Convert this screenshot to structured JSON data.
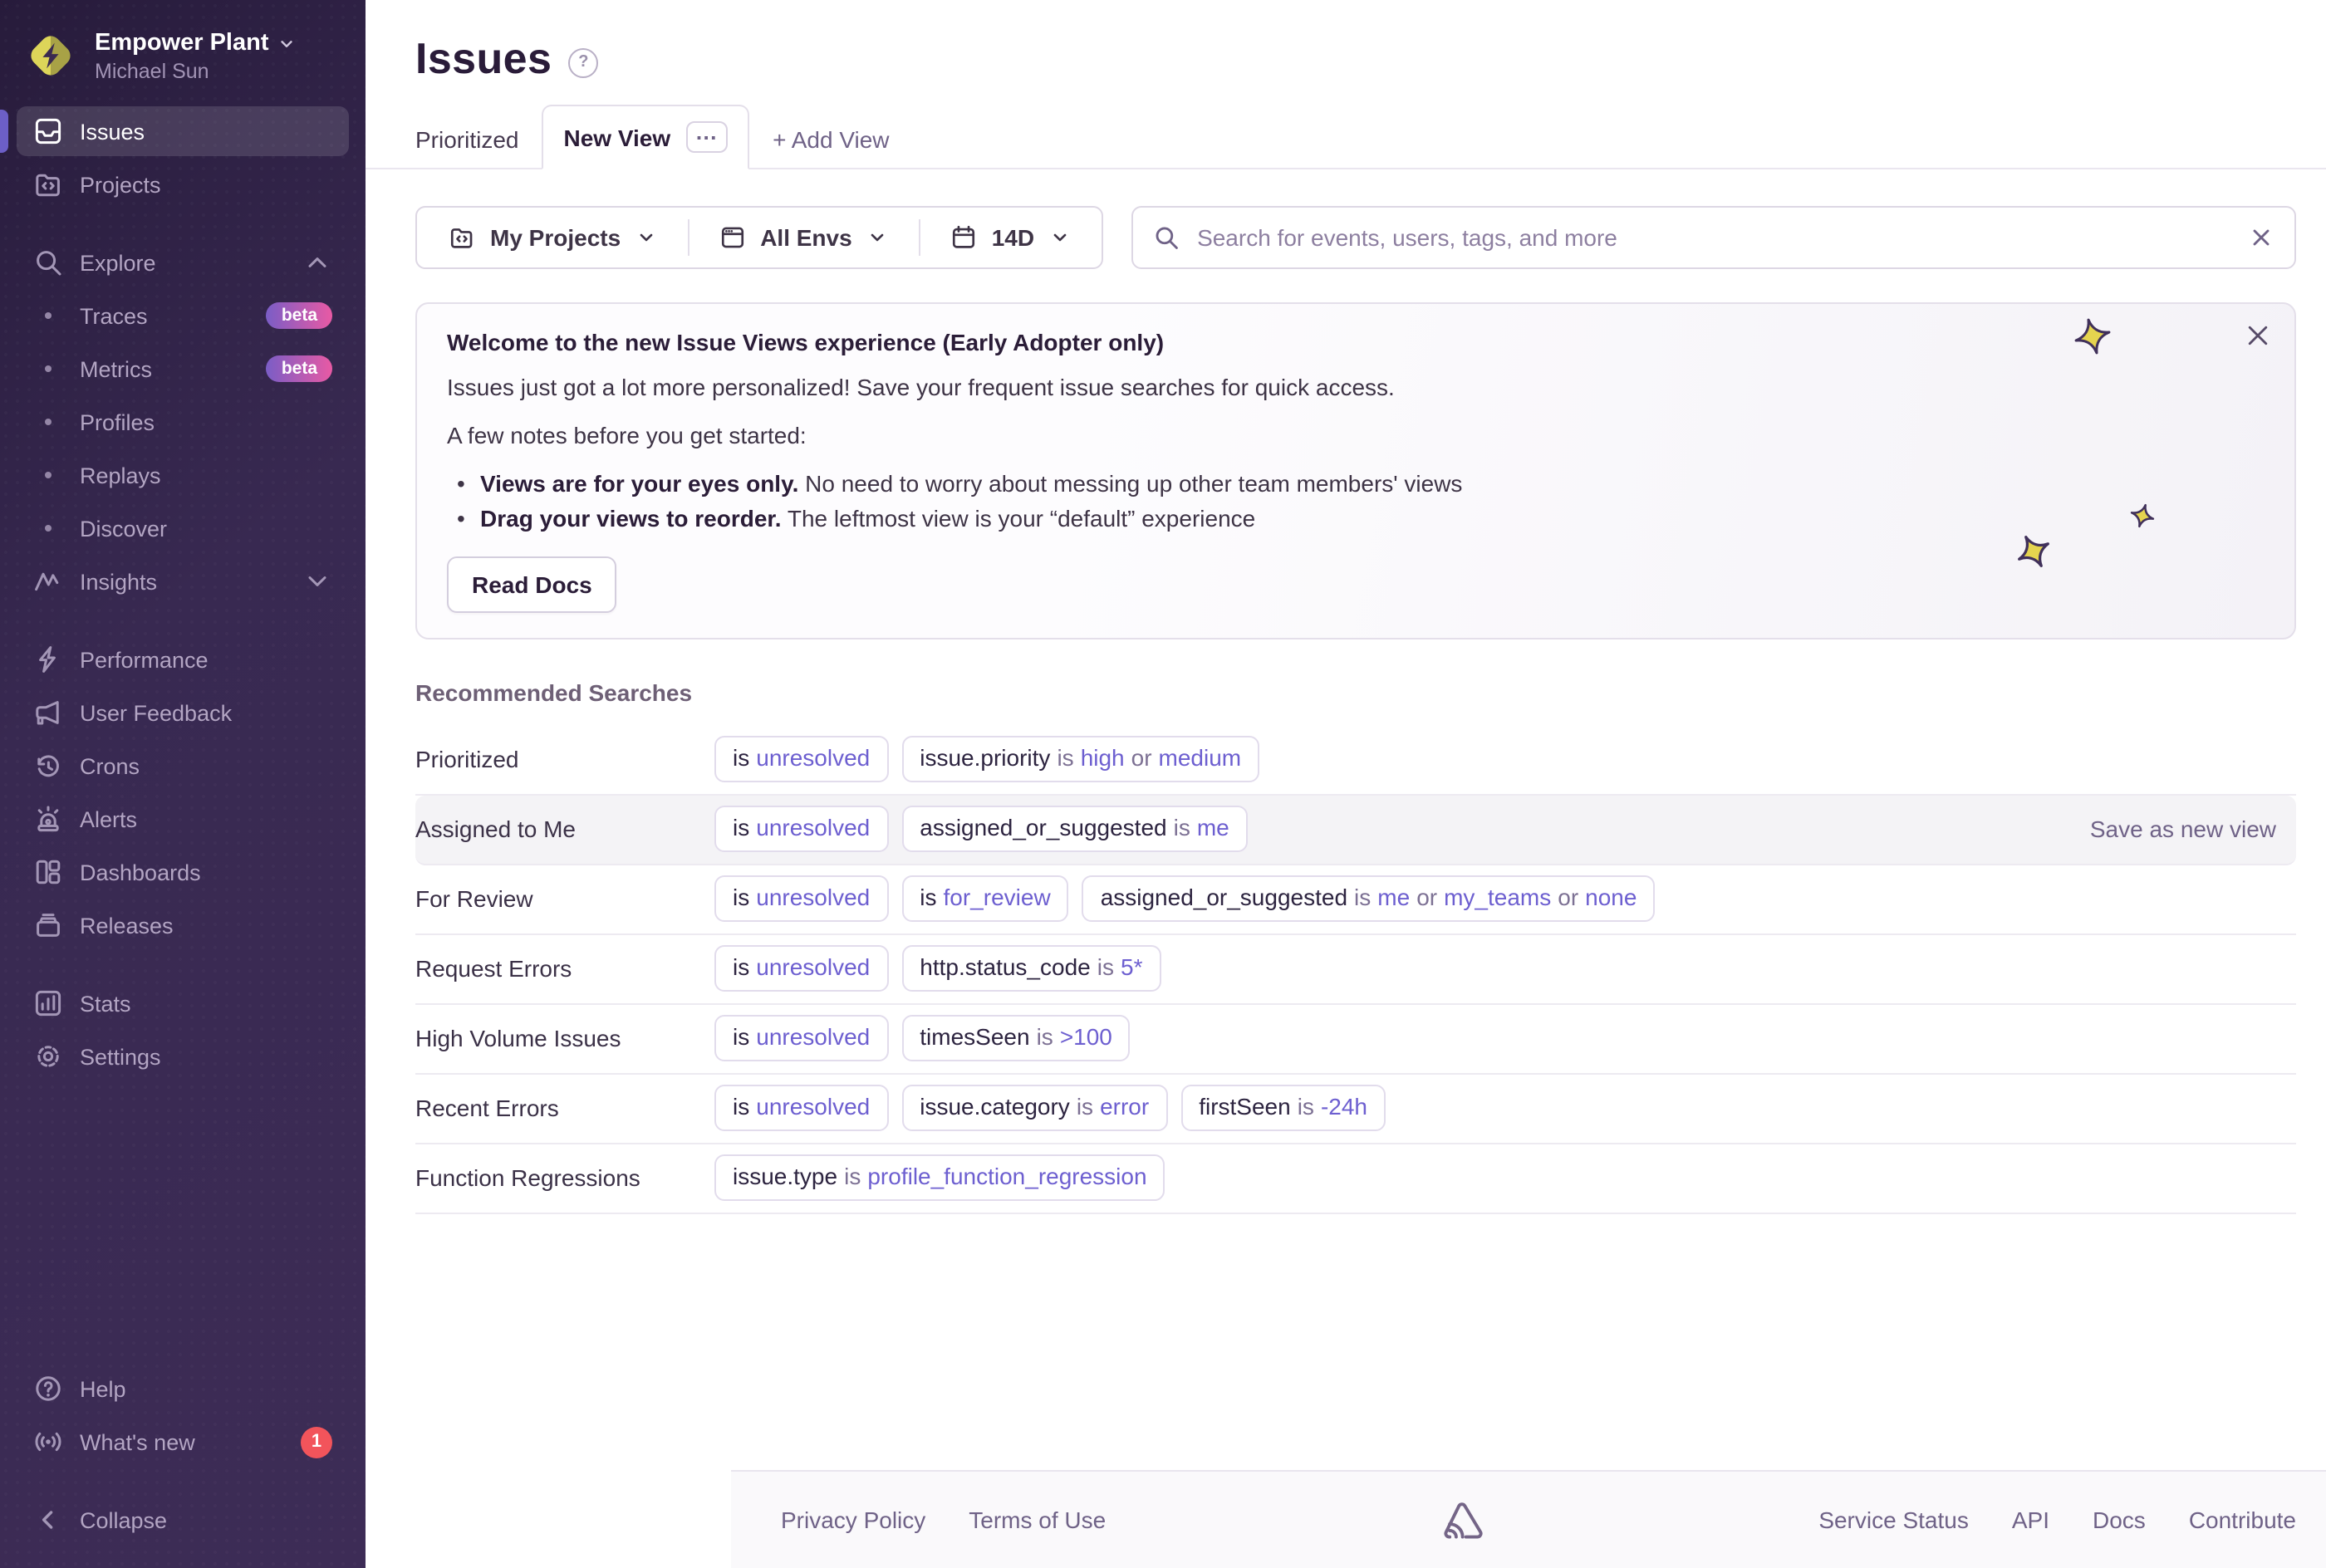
{
  "colors": {
    "accent": "#6C5FC7",
    "badge_red": "#F2545B",
    "value_purple": "#6D5FD0",
    "sidebar_bg": "#3A2A50"
  },
  "sidebar": {
    "org": "Empower Plant",
    "user": "Michael Sun",
    "items": [
      {
        "id": "issues",
        "label": "Issues",
        "icon": "issues-icon",
        "active": true
      },
      {
        "id": "projects",
        "label": "Projects",
        "icon": "projects-icon"
      },
      {
        "id": "explore",
        "label": "Explore",
        "icon": "search-icon",
        "chevron": "up",
        "gap_before": true
      },
      {
        "id": "traces",
        "label": "Traces",
        "bullet": true,
        "badge": "beta"
      },
      {
        "id": "metrics",
        "label": "Metrics",
        "bullet": true,
        "badge": "beta"
      },
      {
        "id": "profiles",
        "label": "Profiles",
        "bullet": true
      },
      {
        "id": "replays",
        "label": "Replays",
        "bullet": true
      },
      {
        "id": "discover",
        "label": "Discover",
        "bullet": true
      },
      {
        "id": "insights",
        "label": "Insights",
        "icon": "insights-icon",
        "chevron": "down"
      },
      {
        "id": "performance",
        "label": "Performance",
        "icon": "lightning-icon",
        "gap_before": true
      },
      {
        "id": "user-feedback",
        "label": "User Feedback",
        "icon": "megaphone-icon"
      },
      {
        "id": "crons",
        "label": "Crons",
        "icon": "clock-icon"
      },
      {
        "id": "alerts",
        "label": "Alerts",
        "icon": "siren-icon"
      },
      {
        "id": "dashboards",
        "label": "Dashboards",
        "icon": "dashboards-icon"
      },
      {
        "id": "releases",
        "label": "Releases",
        "icon": "releases-icon"
      },
      {
        "id": "stats",
        "label": "Stats",
        "icon": "stats-icon",
        "gap_before": true
      },
      {
        "id": "settings",
        "label": "Settings",
        "icon": "gear-icon"
      }
    ],
    "footer_items": [
      {
        "id": "help",
        "label": "Help",
        "icon": "help-icon"
      },
      {
        "id": "whats-new",
        "label": "What's new",
        "icon": "broadcast-icon",
        "badge_count": "1"
      }
    ],
    "collapse_label": "Collapse"
  },
  "header": {
    "title": "Issues",
    "tabs": [
      {
        "label": "Prioritized"
      },
      {
        "label": "New View",
        "active": true,
        "has_menu": true,
        "menu_glyph": "⋯"
      },
      {
        "label": "+ Add View",
        "is_add": true
      }
    ]
  },
  "filters": {
    "projects_label": "My Projects",
    "envs_label": "All Envs",
    "date_label": "14D"
  },
  "search": {
    "placeholder": "Search for events, users, tags, and more"
  },
  "banner": {
    "title": "Welcome to the new Issue Views experience (Early Adopter only)",
    "line1": "Issues just got a lot more personalized! Save your frequent issue searches for quick access.",
    "line2": "A few notes before you get started:",
    "bullets": [
      {
        "bold": "Views are for your eyes only.",
        "rest": " No need to worry about messing up other team members' views"
      },
      {
        "bold": "Drag your views to reorder.",
        "rest": " The leftmost view is your “default” experience"
      }
    ],
    "button": "Read Docs"
  },
  "recommended": {
    "heading": "Recommended Searches",
    "hover_action": "Save as new view",
    "rows": [
      {
        "label": "Prioritized",
        "tags": [
          [
            [
              "is",
              "k"
            ],
            [
              "unresolved",
              "v"
            ]
          ],
          [
            [
              "issue.priority",
              "k"
            ],
            [
              "is",
              "m"
            ],
            [
              "high",
              "v"
            ],
            [
              "or",
              "m"
            ],
            [
              "medium",
              "v"
            ]
          ]
        ]
      },
      {
        "label": "Assigned to Me",
        "hover": true,
        "tags": [
          [
            [
              "is",
              "k"
            ],
            [
              "unresolved",
              "v"
            ]
          ],
          [
            [
              "assigned_or_suggested",
              "k"
            ],
            [
              "is",
              "m"
            ],
            [
              "me",
              "v"
            ]
          ]
        ]
      },
      {
        "label": "For Review",
        "tags": [
          [
            [
              "is",
              "k"
            ],
            [
              "unresolved",
              "v"
            ]
          ],
          [
            [
              "is",
              "k"
            ],
            [
              "for_review",
              "v"
            ]
          ],
          [
            [
              "assigned_or_suggested",
              "k"
            ],
            [
              "is",
              "m"
            ],
            [
              "me",
              "v"
            ],
            [
              "or",
              "m"
            ],
            [
              "my_teams",
              "v"
            ],
            [
              "or",
              "m"
            ],
            [
              "none",
              "v"
            ]
          ]
        ]
      },
      {
        "label": "Request Errors",
        "tags": [
          [
            [
              "is",
              "k"
            ],
            [
              "unresolved",
              "v"
            ]
          ],
          [
            [
              "http.status_code",
              "k"
            ],
            [
              "is",
              "m"
            ],
            [
              "5*",
              "v"
            ]
          ]
        ]
      },
      {
        "label": "High Volume Issues",
        "tags": [
          [
            [
              "is",
              "k"
            ],
            [
              "unresolved",
              "v"
            ]
          ],
          [
            [
              "timesSeen",
              "k"
            ],
            [
              "is",
              "m"
            ],
            [
              ">100",
              "v"
            ]
          ]
        ]
      },
      {
        "label": "Recent Errors",
        "tags": [
          [
            [
              "is",
              "k"
            ],
            [
              "unresolved",
              "v"
            ]
          ],
          [
            [
              "issue.category",
              "k"
            ],
            [
              "is",
              "m"
            ],
            [
              "error",
              "v"
            ]
          ],
          [
            [
              "firstSeen",
              "k"
            ],
            [
              "is",
              "m"
            ],
            [
              "-24h",
              "v"
            ]
          ]
        ]
      },
      {
        "label": "Function Regressions",
        "tags": [
          [
            [
              "issue.type",
              "k"
            ],
            [
              "is",
              "m"
            ],
            [
              "profile_function_regression",
              "v"
            ]
          ]
        ]
      }
    ]
  },
  "footer": {
    "left_links": [
      "Privacy Policy",
      "Terms of Use"
    ],
    "right_links": [
      "Service Status",
      "API",
      "Docs",
      "Contribute"
    ]
  }
}
